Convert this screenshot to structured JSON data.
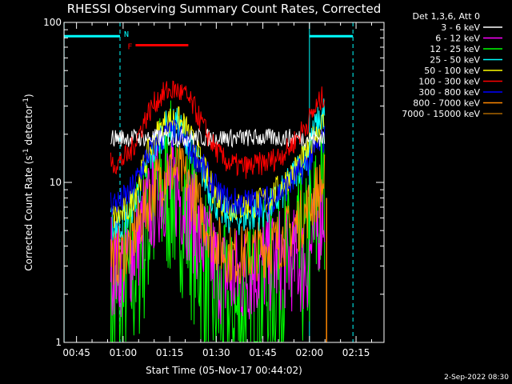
{
  "chart_data": {
    "type": "line",
    "title": "RHESSI Observing Summary Count Rates, Corrected",
    "xlabel": "Start Time (05-Nov-17 00:44:02)",
    "ylabel_main": "Corrected Count Rate (s",
    "ylabel_sup1": "-1",
    "ylabel_mid": " detector",
    "ylabel_sup2": "-1",
    "ylabel_end": ")",
    "yscale": "log",
    "ylim": [
      1,
      100
    ],
    "xlim_minutes": [
      -4.03,
      99.0
    ],
    "x_ticks": [
      {
        "label": "00:45",
        "minutes": 0
      },
      {
        "label": "01:00",
        "minutes": 15
      },
      {
        "label": "01:15",
        "minutes": 30
      },
      {
        "label": "01:30",
        "minutes": 45
      },
      {
        "label": "01:45",
        "minutes": 60
      },
      {
        "label": "02:00",
        "minutes": 75
      },
      {
        "label": "02:15",
        "minutes": 90
      }
    ],
    "y_ticks": [
      {
        "label": "1",
        "value": 1
      },
      {
        "label": "10",
        "value": 10
      },
      {
        "label": "100",
        "value": 100
      }
    ],
    "legend_header": "Det 1,3,6, Att 0",
    "series": [
      {
        "name": "3 - 6 keV",
        "color": "#ffffff",
        "values": [
          19,
          19,
          19,
          19,
          19,
          19,
          19,
          19,
          19,
          19,
          19,
          19,
          19,
          19,
          19,
          19,
          19,
          19,
          19,
          19,
          19,
          19,
          19,
          19
        ]
      },
      {
        "name": "6 - 12 keV",
        "color": "#ff00ff",
        "values": [
          3.2,
          3.0,
          3.4,
          4.5,
          6.5,
          8.5,
          9.5,
          9.0,
          7.5,
          5.5,
          4.0,
          3.2,
          2.6,
          2.5,
          2.6,
          2.8,
          3.0,
          3.2,
          3.3,
          3.3,
          3.2,
          3.0,
          5.0,
          7.5
        ]
      },
      {
        "name": "12 - 25 keV",
        "color": "#00ff00",
        "values": [
          1.5,
          1.6,
          2.2,
          3.5,
          5.5,
          7.5,
          9.0,
          8.5,
          6.5,
          4.5,
          3.0,
          2.0,
          1.5,
          1.4,
          1.5,
          1.7,
          2.0,
          2.3,
          2.6,
          2.8,
          3.0,
          3.2,
          5.5,
          8.0
        ]
      },
      {
        "name": "25 - 50 keV",
        "color": "#00ffff",
        "values": [
          5.5,
          5.5,
          6.5,
          9,
          13,
          18,
          22,
          23,
          20,
          15,
          11,
          8,
          6.5,
          6.0,
          6.0,
          6.2,
          6.5,
          7.0,
          8.0,
          9.5,
          12,
          15,
          22,
          28
        ]
      },
      {
        "name": "50 - 100 keV",
        "color": "#ffff00",
        "values": [
          6.0,
          6.2,
          7.0,
          10,
          15,
          20,
          24,
          25,
          22,
          17,
          12,
          9,
          7.5,
          7.0,
          7.0,
          7.2,
          7.5,
          8.0,
          9.0,
          10.5,
          12.5,
          15,
          20,
          24
        ]
      },
      {
        "name": "100 - 300 keV",
        "color": "#ff0000",
        "values": [
          13,
          13.5,
          15,
          20,
          27,
          33,
          37,
          38,
          35,
          29,
          22,
          17,
          14,
          13,
          12.5,
          12.5,
          13,
          13.5,
          14.5,
          16,
          19,
          23,
          29,
          36
        ]
      },
      {
        "name": "300 - 800 keV",
        "color": "#0000ff",
        "values": [
          7.5,
          7.5,
          8.5,
          11,
          15,
          18,
          20,
          20,
          18,
          15,
          12,
          9.5,
          8.0,
          7.5,
          7.5,
          7.5,
          7.5,
          7.8,
          8.5,
          9.5,
          11,
          13,
          16,
          19
        ]
      },
      {
        "name": "800 - 7000 keV",
        "color": "#ff8800",
        "values": [
          3.5,
          3.5,
          4.0,
          5.5,
          7.5,
          10,
          12,
          12,
          10.5,
          8,
          6,
          4.5,
          3.8,
          3.5,
          3.5,
          3.6,
          3.8,
          4.0,
          4.3,
          4.8,
          5.5,
          6.5,
          8.5,
          10
        ]
      },
      {
        "name": "7000 - 15000 keV",
        "color": "#aa6600",
        "values": []
      }
    ],
    "series_x_minutes": [
      11.0,
      14.0,
      17.0,
      20.0,
      23.0,
      26.0,
      29.0,
      32.0,
      35.0,
      38.0,
      41.0,
      44.0,
      47.0,
      50.0,
      53.0,
      56.0,
      59.0,
      62.0,
      65.0,
      68.0,
      71.0,
      74.0,
      77.0,
      80.0
    ],
    "night_flag": {
      "label": "N",
      "start_minutes": -4.0,
      "end_minutes": 14.0,
      "value": 82
    },
    "flare_flag": {
      "label": "F",
      "start_minutes": 19.0,
      "end_minutes": 36.0,
      "value": 72
    },
    "saa_flag": {
      "start_minutes": 75.0,
      "end_minutes": 89.0,
      "value": 82
    },
    "vertical_markers_minutes": [
      -4.0,
      14.0,
      75.0,
      89.0
    ],
    "extra_line": {
      "color": "#ff8800",
      "minutes": 80.5
    }
  },
  "timestamp": "2-Sep-2022 08:30"
}
